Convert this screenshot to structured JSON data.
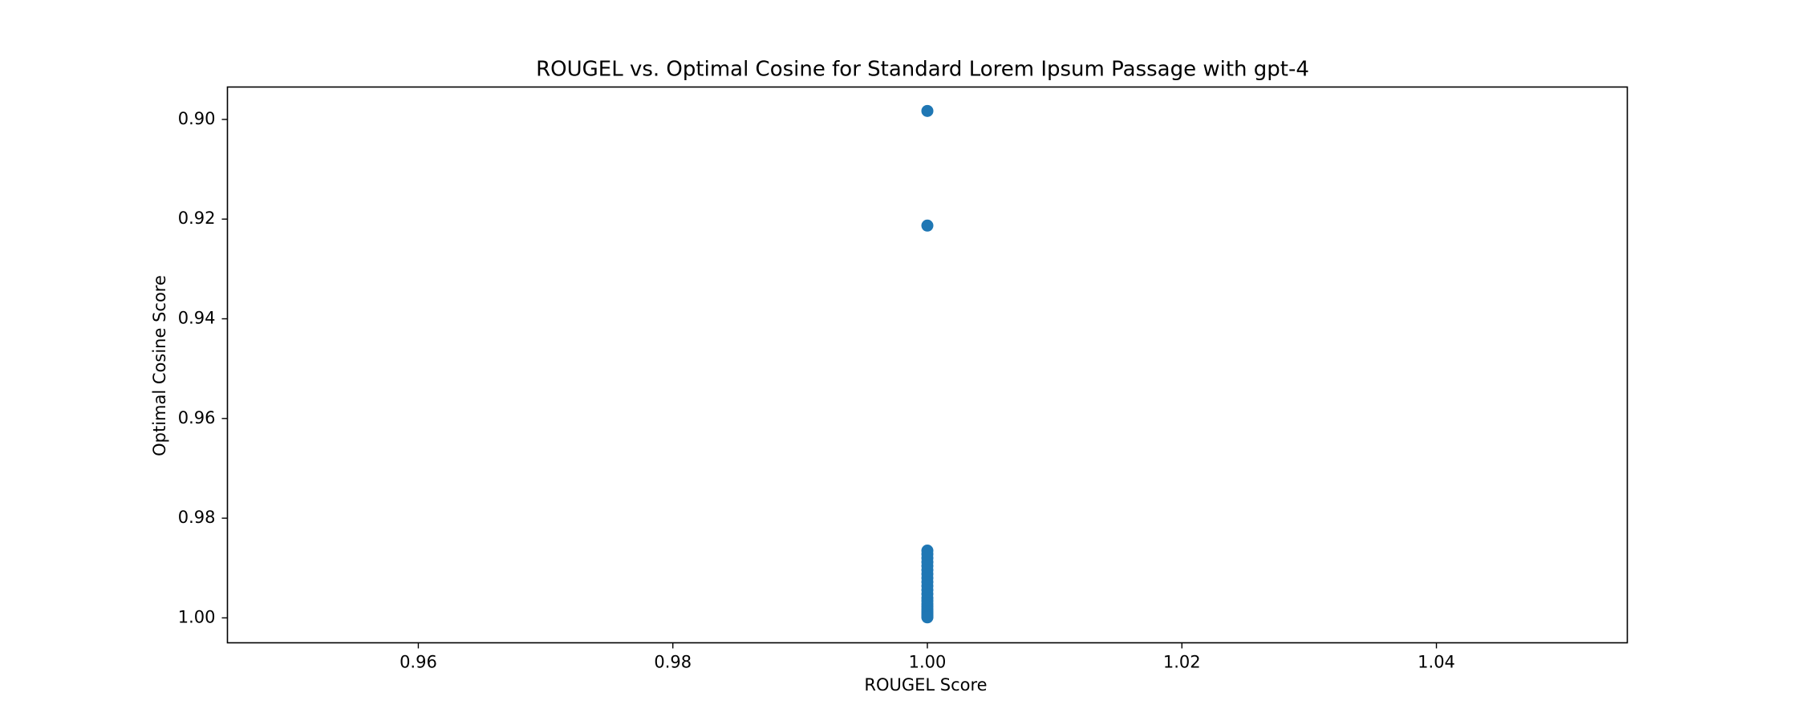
{
  "chart_data": {
    "type": "scatter",
    "title": "ROUGEL vs. Optimal Cosine for Standard Lorem Ipsum Passage with gpt-4",
    "xlabel": "ROUGEL Score",
    "ylabel": "Optimal Cosine Score",
    "xlim": [
      0.945,
      1.055
    ],
    "ylim": [
      1.005,
      0.8935
    ],
    "y_inverted": true,
    "grid": false,
    "xticks": [
      0.96,
      0.98,
      1.0,
      1.02,
      1.04
    ],
    "xtick_labels": [
      "0.96",
      "0.98",
      "1.00",
      "1.02",
      "1.04"
    ],
    "yticks": [
      0.9,
      0.92,
      0.94,
      0.96,
      0.98,
      1.0
    ],
    "ytick_labels": [
      "0.90",
      "0.92",
      "0.94",
      "0.96",
      "0.98",
      "1.00"
    ],
    "marker_color": "#1f77b4",
    "series": [
      {
        "x": [
          1.0,
          1.0,
          1.0,
          1.0,
          1.0,
          1.0,
          1.0,
          1.0,
          1.0,
          1.0,
          1.0,
          1.0,
          1.0,
          1.0,
          1.0,
          1.0,
          1.0,
          1.0,
          1.0,
          1.0,
          1.0,
          1.0,
          1.0,
          1.0,
          1.0
        ],
        "y": [
          0.8983,
          0.9213,
          0.9865,
          0.9872,
          0.988,
          0.9888,
          0.9896,
          0.9904,
          0.9912,
          0.992,
          0.9928,
          0.9936,
          0.9944,
          0.9952,
          0.996,
          0.9966,
          0.9972,
          0.9977,
          0.9982,
          0.9986,
          0.999,
          0.9993,
          0.9996,
          0.9998,
          0.9999
        ]
      }
    ]
  }
}
